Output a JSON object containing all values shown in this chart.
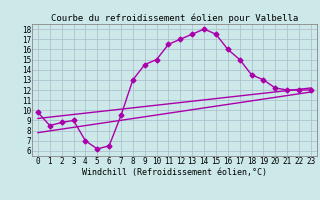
{
  "title": "Courbe du refroidissement éolien pour Valbella",
  "xlabel": "Windchill (Refroidissement éolien,°C)",
  "bg_color": "#cce8e8",
  "line_color": "#aa00aa",
  "grid_color": "#aabbcc",
  "x_ticks": [
    0,
    1,
    2,
    3,
    4,
    5,
    6,
    7,
    8,
    9,
    10,
    11,
    12,
    13,
    14,
    15,
    16,
    17,
    18,
    19,
    20,
    21,
    22,
    23
  ],
  "y_ticks": [
    6,
    7,
    8,
    9,
    10,
    11,
    12,
    13,
    14,
    15,
    16,
    17,
    18
  ],
  "xlim": [
    -0.5,
    23.5
  ],
  "ylim": [
    5.5,
    18.5
  ],
  "curve1_x": [
    0,
    1,
    2,
    3,
    4,
    5,
    6,
    7,
    8,
    9,
    10,
    11,
    12,
    13,
    14,
    15,
    16,
    17,
    18,
    19,
    20,
    21,
    22,
    23
  ],
  "curve1_y": [
    9.8,
    8.5,
    8.8,
    9.0,
    7.0,
    6.2,
    6.5,
    9.5,
    13.0,
    14.5,
    15.0,
    16.5,
    17.0,
    17.5,
    18.0,
    17.5,
    16.0,
    15.0,
    13.5,
    13.0,
    12.2,
    12.0,
    12.0,
    12.0
  ],
  "curve2_x": [
    0,
    23
  ],
  "curve2_y": [
    9.2,
    12.2
  ],
  "curve3_x": [
    0,
    23
  ],
  "curve3_y": [
    7.8,
    11.8
  ],
  "marker": "D",
  "markersize": 2.5,
  "linewidth": 1.0,
  "title_fontsize": 6.5,
  "xlabel_fontsize": 6.0,
  "tick_fontsize": 5.5
}
